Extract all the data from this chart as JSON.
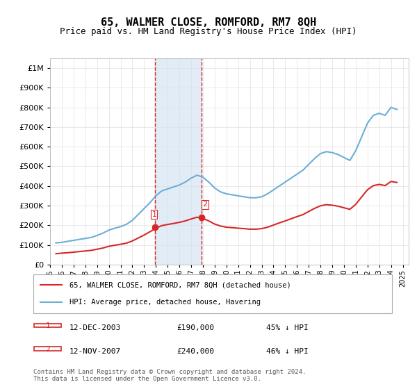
{
  "title": "65, WALMER CLOSE, ROMFORD, RM7 8QH",
  "subtitle": "Price paid vs. HM Land Registry's House Price Index (HPI)",
  "legend_line1": "65, WALMER CLOSE, ROMFORD, RM7 8QH (detached house)",
  "legend_line2": "HPI: Average price, detached house, Havering",
  "annotation1_label": "1",
  "annotation1_date": "12-DEC-2003",
  "annotation1_price": "£190,000",
  "annotation1_hpi": "45% ↓ HPI",
  "annotation2_label": "2",
  "annotation2_date": "12-NOV-2007",
  "annotation2_price": "£240,000",
  "annotation2_hpi": "46% ↓ HPI",
  "footer": "Contains HM Land Registry data © Crown copyright and database right 2024.\nThis data is licensed under the Open Government Licence v3.0.",
  "hpi_color": "#6baed6",
  "price_color": "#d62728",
  "vline_color": "#d62728",
  "shade_color": "#c6dbef",
  "title_fontsize": 11,
  "subtitle_fontsize": 9,
  "ylabel": "",
  "ylim_min": 0,
  "ylim_max": 1050000,
  "yticks": [
    0,
    100000,
    200000,
    300000,
    400000,
    500000,
    600000,
    700000,
    800000,
    900000,
    1000000
  ],
  "ytick_labels": [
    "£0",
    "£100K",
    "£200K",
    "£300K",
    "£400K",
    "£500K",
    "£600K",
    "£700K",
    "£800K",
    "£900K",
    "£1M"
  ],
  "sale1_year": 2003.95,
  "sale2_year": 2007.87,
  "sale1_price": 190000,
  "sale2_price": 240000,
  "hpi_years": [
    1995.5,
    1996.0,
    1996.5,
    1997.0,
    1997.5,
    1998.0,
    1998.5,
    1999.0,
    1999.5,
    2000.0,
    2000.5,
    2001.0,
    2001.5,
    2002.0,
    2002.5,
    2003.0,
    2003.5,
    2004.0,
    2004.5,
    2005.0,
    2005.5,
    2006.0,
    2006.5,
    2007.0,
    2007.5,
    2008.0,
    2008.5,
    2009.0,
    2009.5,
    2010.0,
    2010.5,
    2011.0,
    2011.5,
    2012.0,
    2012.5,
    2013.0,
    2013.5,
    2014.0,
    2014.5,
    2015.0,
    2015.5,
    2016.0,
    2016.5,
    2017.0,
    2017.5,
    2018.0,
    2018.5,
    2019.0,
    2019.5,
    2020.0,
    2020.5,
    2021.0,
    2021.5,
    2022.0,
    2022.5,
    2023.0,
    2023.5,
    2024.0,
    2024.5
  ],
  "hpi_values": [
    110000,
    113000,
    118000,
    123000,
    128000,
    133000,
    138000,
    148000,
    160000,
    175000,
    185000,
    193000,
    205000,
    225000,
    255000,
    285000,
    315000,
    350000,
    375000,
    385000,
    395000,
    405000,
    420000,
    440000,
    455000,
    445000,
    420000,
    390000,
    370000,
    360000,
    355000,
    350000,
    345000,
    340000,
    340000,
    345000,
    360000,
    380000,
    400000,
    420000,
    440000,
    460000,
    480000,
    510000,
    540000,
    565000,
    575000,
    570000,
    560000,
    545000,
    530000,
    580000,
    650000,
    720000,
    760000,
    770000,
    760000,
    800000,
    790000
  ],
  "price_years": [
    1995.5,
    1996.0,
    1996.5,
    1997.0,
    1997.5,
    1998.0,
    1998.5,
    1999.0,
    1999.5,
    2000.0,
    2000.5,
    2001.0,
    2001.5,
    2002.0,
    2002.5,
    2003.0,
    2003.5,
    2004.0,
    2004.5,
    2005.0,
    2005.5,
    2006.0,
    2006.5,
    2007.0,
    2007.5,
    2008.0,
    2008.5,
    2009.0,
    2009.5,
    2010.0,
    2010.5,
    2011.0,
    2011.5,
    2012.0,
    2012.5,
    2013.0,
    2013.5,
    2014.0,
    2014.5,
    2015.0,
    2015.5,
    2016.0,
    2016.5,
    2017.0,
    2017.5,
    2018.0,
    2018.5,
    2019.0,
    2019.5,
    2020.0,
    2020.5,
    2021.0,
    2021.5,
    2022.0,
    2022.5,
    2023.0,
    2023.5,
    2024.0,
    2024.5
  ],
  "price_values": [
    55000,
    58000,
    60000,
    63000,
    66000,
    69000,
    72000,
    78000,
    84000,
    93000,
    98000,
    103000,
    109000,
    120000,
    135000,
    150000,
    167000,
    185000,
    198000,
    204000,
    209000,
    215000,
    222000,
    232000,
    241000,
    235000,
    222000,
    206000,
    196000,
    190000,
    188000,
    185000,
    183000,
    180000,
    180000,
    183000,
    190000,
    201000,
    212000,
    222000,
    233000,
    244000,
    254000,
    270000,
    286000,
    299000,
    305000,
    302000,
    297000,
    289000,
    281000,
    307000,
    344000,
    381000,
    402000,
    408000,
    402000,
    423000,
    418000
  ],
  "xmin": 1995.0,
  "xmax": 2025.5,
  "xtick_years": [
    1995,
    1996,
    1997,
    1998,
    1999,
    2000,
    2001,
    2002,
    2003,
    2004,
    2005,
    2006,
    2007,
    2008,
    2009,
    2010,
    2011,
    2012,
    2013,
    2014,
    2015,
    2016,
    2017,
    2018,
    2019,
    2020,
    2021,
    2022,
    2023,
    2024,
    2025
  ]
}
